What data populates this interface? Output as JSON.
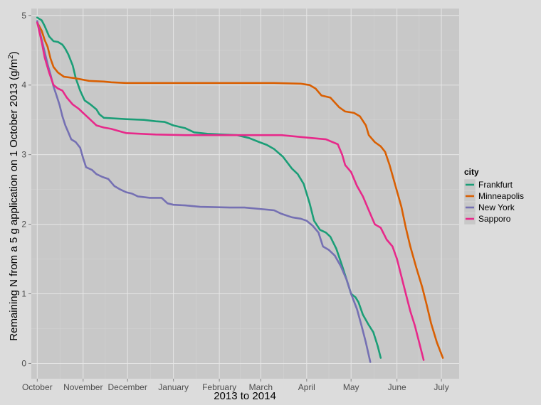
{
  "chart_data": {
    "type": "line",
    "title": "",
    "xlabel": "2013 to 2014",
    "ylabel": "Remaining N from a 5 g application on 1 October 2013 (g/m²)",
    "ylabel_parts": {
      "main": "Remaining N from a 5 g application on 1 October 2013 (g",
      "slash": "/",
      "unit": "m",
      "exponent": "2",
      "close": ")"
    },
    "x_axis": {
      "unit": "days since 2013-10-01",
      "range": [
        -4,
        285
      ],
      "ticks": [
        {
          "label": "October",
          "value": 0
        },
        {
          "label": "November",
          "value": 31
        },
        {
          "label": "December",
          "value": 61
        },
        {
          "label": "January",
          "value": 92
        },
        {
          "label": "February",
          "value": 123
        },
        {
          "label": "March",
          "value": 151
        },
        {
          "label": "April",
          "value": 182
        },
        {
          "label": "May",
          "value": 212
        },
        {
          "label": "June",
          "value": 243
        },
        {
          "label": "July",
          "value": 273
        }
      ]
    },
    "y_axis": {
      "range": [
        -0.22,
        5.1
      ],
      "ticks": [
        0,
        1,
        2,
        3,
        4,
        5
      ]
    },
    "grid": true,
    "legend": {
      "title": "city",
      "position": "right",
      "entries": [
        "Frankfurt",
        "Minneapolis",
        "New York",
        "Sapporo"
      ]
    },
    "series": [
      {
        "name": "Frankfurt",
        "color": "#1b9e77",
        "points": [
          [
            0,
            4.97
          ],
          [
            3,
            4.93
          ],
          [
            5,
            4.85
          ],
          [
            8,
            4.7
          ],
          [
            11,
            4.63
          ],
          [
            14,
            4.62
          ],
          [
            17,
            4.58
          ],
          [
            19,
            4.52
          ],
          [
            21,
            4.44
          ],
          [
            24,
            4.28
          ],
          [
            26,
            4.1
          ],
          [
            29,
            3.92
          ],
          [
            32,
            3.78
          ],
          [
            36,
            3.72
          ],
          [
            40,
            3.65
          ],
          [
            42,
            3.58
          ],
          [
            45,
            3.53
          ],
          [
            52,
            3.52
          ],
          [
            60,
            3.51
          ],
          [
            72,
            3.5
          ],
          [
            80,
            3.48
          ],
          [
            86,
            3.47
          ],
          [
            92,
            3.42
          ],
          [
            100,
            3.38
          ],
          [
            106,
            3.32
          ],
          [
            115,
            3.3
          ],
          [
            125,
            3.29
          ],
          [
            135,
            3.28
          ],
          [
            143,
            3.24
          ],
          [
            150,
            3.18
          ],
          [
            155,
            3.14
          ],
          [
            160,
            3.08
          ],
          [
            166,
            2.97
          ],
          [
            172,
            2.8
          ],
          [
            176,
            2.72
          ],
          [
            180,
            2.58
          ],
          [
            184,
            2.3
          ],
          [
            187,
            2.05
          ],
          [
            191,
            1.92
          ],
          [
            195,
            1.88
          ],
          [
            198,
            1.82
          ],
          [
            202,
            1.65
          ],
          [
            206,
            1.4
          ],
          [
            209,
            1.2
          ],
          [
            212,
            1.0
          ],
          [
            215,
            0.95
          ],
          [
            217,
            0.88
          ],
          [
            220,
            0.7
          ],
          [
            224,
            0.55
          ],
          [
            227,
            0.45
          ],
          [
            230,
            0.25
          ],
          [
            232,
            0.08
          ]
        ]
      },
      {
        "name": "Minneapolis",
        "color": "#d95f02",
        "points": [
          [
            0,
            4.9
          ],
          [
            3,
            4.78
          ],
          [
            5,
            4.65
          ],
          [
            7,
            4.55
          ],
          [
            9,
            4.38
          ],
          [
            11,
            4.26
          ],
          [
            14,
            4.18
          ],
          [
            18,
            4.12
          ],
          [
            25,
            4.1
          ],
          [
            35,
            4.06
          ],
          [
            45,
            4.05
          ],
          [
            50,
            4.04
          ],
          [
            60,
            4.03
          ],
          [
            80,
            4.03
          ],
          [
            100,
            4.03
          ],
          [
            130,
            4.03
          ],
          [
            160,
            4.03
          ],
          [
            178,
            4.02
          ],
          [
            184,
            4.0
          ],
          [
            188,
            3.95
          ],
          [
            192,
            3.85
          ],
          [
            198,
            3.82
          ],
          [
            204,
            3.68
          ],
          [
            208,
            3.62
          ],
          [
            214,
            3.6
          ],
          [
            218,
            3.55
          ],
          [
            222,
            3.42
          ],
          [
            224,
            3.28
          ],
          [
            228,
            3.18
          ],
          [
            232,
            3.12
          ],
          [
            235,
            3.04
          ],
          [
            238,
            2.85
          ],
          [
            242,
            2.55
          ],
          [
            246,
            2.25
          ],
          [
            249,
            1.95
          ],
          [
            252,
            1.68
          ],
          [
            256,
            1.38
          ],
          [
            260,
            1.1
          ],
          [
            263,
            0.85
          ],
          [
            266,
            0.58
          ],
          [
            270,
            0.3
          ],
          [
            274,
            0.08
          ]
        ]
      },
      {
        "name": "New York",
        "color": "#7570b3",
        "points": [
          [
            0,
            4.92
          ],
          [
            3,
            4.65
          ],
          [
            5,
            4.48
          ],
          [
            7,
            4.3
          ],
          [
            9,
            4.15
          ],
          [
            11,
            3.98
          ],
          [
            13,
            3.85
          ],
          [
            15,
            3.72
          ],
          [
            17,
            3.55
          ],
          [
            19,
            3.42
          ],
          [
            21,
            3.32
          ],
          [
            23,
            3.22
          ],
          [
            26,
            3.18
          ],
          [
            29,
            3.1
          ],
          [
            31,
            2.95
          ],
          [
            33,
            2.82
          ],
          [
            37,
            2.78
          ],
          [
            40,
            2.72
          ],
          [
            44,
            2.68
          ],
          [
            48,
            2.65
          ],
          [
            52,
            2.55
          ],
          [
            56,
            2.5
          ],
          [
            60,
            2.46
          ],
          [
            64,
            2.44
          ],
          [
            68,
            2.4
          ],
          [
            76,
            2.38
          ],
          [
            84,
            2.38
          ],
          [
            88,
            2.3
          ],
          [
            92,
            2.28
          ],
          [
            100,
            2.27
          ],
          [
            110,
            2.25
          ],
          [
            130,
            2.24
          ],
          [
            140,
            2.24
          ],
          [
            150,
            2.22
          ],
          [
            160,
            2.2
          ],
          [
            165,
            2.15
          ],
          [
            172,
            2.1
          ],
          [
            178,
            2.08
          ],
          [
            182,
            2.05
          ],
          [
            186,
            1.98
          ],
          [
            190,
            1.88
          ],
          [
            193,
            1.68
          ],
          [
            197,
            1.63
          ],
          [
            201,
            1.55
          ],
          [
            205,
            1.4
          ],
          [
            209,
            1.2
          ],
          [
            212,
            1.0
          ],
          [
            216,
            0.78
          ],
          [
            219,
            0.55
          ],
          [
            222,
            0.3
          ],
          [
            225,
            0.02
          ]
        ]
      },
      {
        "name": "Sapporo",
        "color": "#e7298a",
        "points": [
          [
            0,
            4.9
          ],
          [
            3,
            4.62
          ],
          [
            5,
            4.4
          ],
          [
            8,
            4.18
          ],
          [
            11,
            4.0
          ],
          [
            14,
            3.95
          ],
          [
            17,
            3.92
          ],
          [
            20,
            3.82
          ],
          [
            24,
            3.72
          ],
          [
            28,
            3.66
          ],
          [
            32,
            3.58
          ],
          [
            36,
            3.5
          ],
          [
            40,
            3.42
          ],
          [
            45,
            3.39
          ],
          [
            50,
            3.37
          ],
          [
            55,
            3.34
          ],
          [
            60,
            3.31
          ],
          [
            70,
            3.3
          ],
          [
            80,
            3.29
          ],
          [
            100,
            3.28
          ],
          [
            120,
            3.28
          ],
          [
            150,
            3.28
          ],
          [
            165,
            3.28
          ],
          [
            175,
            3.26
          ],
          [
            185,
            3.24
          ],
          [
            195,
            3.22
          ],
          [
            203,
            3.15
          ],
          [
            206,
            3.0
          ],
          [
            208,
            2.85
          ],
          [
            212,
            2.75
          ],
          [
            216,
            2.55
          ],
          [
            220,
            2.4
          ],
          [
            224,
            2.2
          ],
          [
            228,
            2.0
          ],
          [
            232,
            1.95
          ],
          [
            236,
            1.78
          ],
          [
            240,
            1.68
          ],
          [
            243,
            1.5
          ],
          [
            246,
            1.25
          ],
          [
            249,
            1.0
          ],
          [
            252,
            0.75
          ],
          [
            255,
            0.55
          ],
          [
            258,
            0.3
          ],
          [
            261,
            0.05
          ]
        ]
      }
    ]
  }
}
